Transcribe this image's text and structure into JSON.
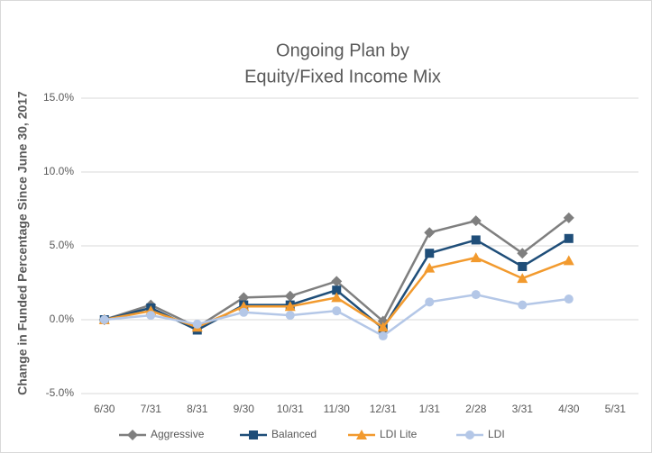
{
  "chart_data": {
    "type": "line",
    "title": [
      "Ongoing Plan by",
      "Equity/Fixed Income Mix"
    ],
    "y_label": "Change in Funded Percentage Since June 30, 2017",
    "categories": [
      "6/30",
      "7/31",
      "8/31",
      "9/30",
      "10/31",
      "11/30",
      "12/31",
      "1/31",
      "2/28",
      "3/31",
      "4/30",
      "5/31"
    ],
    "series": [
      {
        "name": "Aggressive",
        "color": "#7f7f7f",
        "marker": "diamond",
        "values": [
          0,
          1.0,
          -0.5,
          1.5,
          1.6,
          2.6,
          -0.1,
          5.9,
          6.7,
          4.5,
          6.9,
          null
        ]
      },
      {
        "name": "Balanced",
        "color": "#1f4e79",
        "marker": "square",
        "values": [
          0,
          0.8,
          -0.7,
          1.0,
          1.0,
          2.0,
          -0.6,
          4.5,
          5.4,
          3.6,
          5.5,
          null
        ]
      },
      {
        "name": "LDI Lite",
        "color": "#f29a2e",
        "marker": "triangle",
        "values": [
          0,
          0.6,
          -0.5,
          0.9,
          0.9,
          1.5,
          -0.5,
          3.5,
          4.2,
          2.8,
          4.0,
          null
        ]
      },
      {
        "name": "LDI",
        "color": "#b4c7e7",
        "marker": "circle",
        "values": [
          0,
          0.3,
          -0.3,
          0.5,
          0.3,
          0.6,
          -1.1,
          1.2,
          1.7,
          1.0,
          1.4,
          null
        ]
      }
    ],
    "ylim": [
      -5,
      15
    ],
    "yticks": [
      {
        "value": -5,
        "label": "-5.0%"
      },
      {
        "value": 0,
        "label": "0.0%"
      },
      {
        "value": 5,
        "label": "5.0%"
      },
      {
        "value": 10,
        "label": "10.0%"
      },
      {
        "value": 15,
        "label": "15.0%"
      }
    ],
    "grid": true,
    "legend": "bottom"
  }
}
